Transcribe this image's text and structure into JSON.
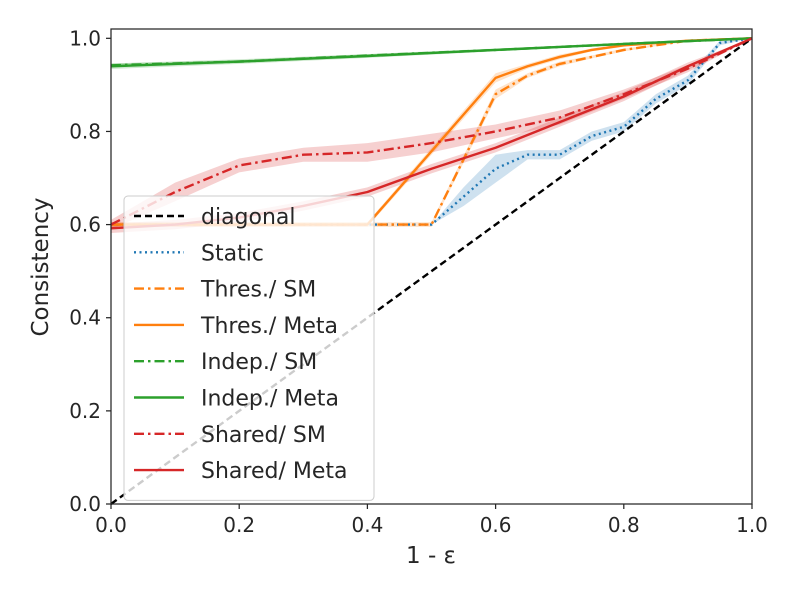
{
  "chart_data": {
    "type": "line",
    "xlabel": "1 - ε",
    "ylabel": "Consistency",
    "xlim": [
      0.0,
      1.0
    ],
    "ylim": [
      0.0,
      1.02
    ],
    "x_ticks": [
      "0.0",
      "0.2",
      "0.4",
      "0.6",
      "0.8",
      "1.0"
    ],
    "y_ticks": [
      "0.0",
      "0.2",
      "0.4",
      "0.6",
      "0.8",
      "1.0"
    ],
    "grid": false,
    "legend_position": "lower left",
    "series": [
      {
        "name": "diagonal",
        "color": "#000000",
        "style": "dashed",
        "x": [
          0.0,
          1.0
        ],
        "y": [
          0.0,
          1.0
        ]
      },
      {
        "name": "Static",
        "color": "#1f77b4",
        "style": "dotted",
        "x": [
          0.0,
          0.5,
          0.55,
          0.6,
          0.65,
          0.7,
          0.75,
          0.8,
          0.85,
          0.9,
          0.95,
          1.0
        ],
        "y": [
          0.6,
          0.6,
          0.66,
          0.72,
          0.75,
          0.75,
          0.79,
          0.81,
          0.87,
          0.91,
          0.99,
          1.0
        ],
        "band": [
          0.0,
          0.0,
          0.02,
          0.03,
          0.01,
          0.01,
          0.01,
          0.01,
          0.01,
          0.01,
          0.005,
          0.0
        ]
      },
      {
        "name": "Thres./ SM",
        "color": "#ff7f0e",
        "style": "dashdot",
        "x": [
          0.0,
          0.5,
          0.6,
          0.65,
          0.7,
          0.75,
          0.8,
          0.85,
          0.9,
          1.0
        ],
        "y": [
          0.6,
          0.6,
          0.88,
          0.92,
          0.945,
          0.96,
          0.975,
          0.985,
          0.995,
          1.0
        ],
        "band": [
          0.005,
          0.005,
          0.01,
          0.005,
          0.005,
          0.003,
          0.003,
          0.002,
          0.002,
          0.0
        ]
      },
      {
        "name": "Thres./ Meta",
        "color": "#ff7f0e",
        "style": "solid",
        "x": [
          0.0,
          0.4,
          0.6,
          0.65,
          0.7,
          0.75,
          0.8,
          0.9,
          1.0
        ],
        "y": [
          0.6,
          0.6,
          0.915,
          0.94,
          0.96,
          0.975,
          0.985,
          0.995,
          1.0
        ],
        "band": [
          0.005,
          0.005,
          0.01,
          0.005,
          0.005,
          0.003,
          0.003,
          0.002,
          0.0
        ]
      },
      {
        "name": "Indep./ SM",
        "color": "#2ca02c",
        "style": "dashdot",
        "x": [
          0.0,
          0.2,
          0.4,
          0.6,
          0.8,
          1.0
        ],
        "y": [
          0.942,
          0.95,
          0.963,
          0.975,
          0.988,
          1.0
        ],
        "band": [
          0.004,
          0.003,
          0.003,
          0.002,
          0.002,
          0.0
        ]
      },
      {
        "name": "Indep./ Meta",
        "color": "#2ca02c",
        "style": "solid",
        "x": [
          0.0,
          0.2,
          0.4,
          0.6,
          0.8,
          1.0
        ],
        "y": [
          0.94,
          0.95,
          0.962,
          0.975,
          0.988,
          1.0
        ],
        "band": [
          0.006,
          0.005,
          0.004,
          0.003,
          0.002,
          0.0
        ]
      },
      {
        "name": "Shared/ SM",
        "color": "#d62728",
        "style": "dashdot",
        "x": [
          0.0,
          0.1,
          0.2,
          0.3,
          0.4,
          0.5,
          0.6,
          0.7,
          0.8,
          0.9,
          1.0
        ],
        "y": [
          0.6,
          0.67,
          0.727,
          0.75,
          0.755,
          0.775,
          0.8,
          0.83,
          0.88,
          0.935,
          1.0
        ],
        "band": [
          0.01,
          0.02,
          0.015,
          0.015,
          0.02,
          0.02,
          0.015,
          0.015,
          0.01,
          0.008,
          0.0
        ]
      },
      {
        "name": "Shared/ Meta",
        "color": "#d62728",
        "style": "solid",
        "x": [
          0.0,
          0.1,
          0.2,
          0.3,
          0.4,
          0.5,
          0.6,
          0.7,
          0.8,
          0.9,
          1.0
        ],
        "y": [
          0.592,
          0.6,
          0.615,
          0.64,
          0.67,
          0.72,
          0.765,
          0.82,
          0.875,
          0.94,
          1.0
        ],
        "band": [
          0.01,
          0.01,
          0.01,
          0.01,
          0.01,
          0.01,
          0.01,
          0.01,
          0.01,
          0.008,
          0.0
        ]
      }
    ]
  }
}
